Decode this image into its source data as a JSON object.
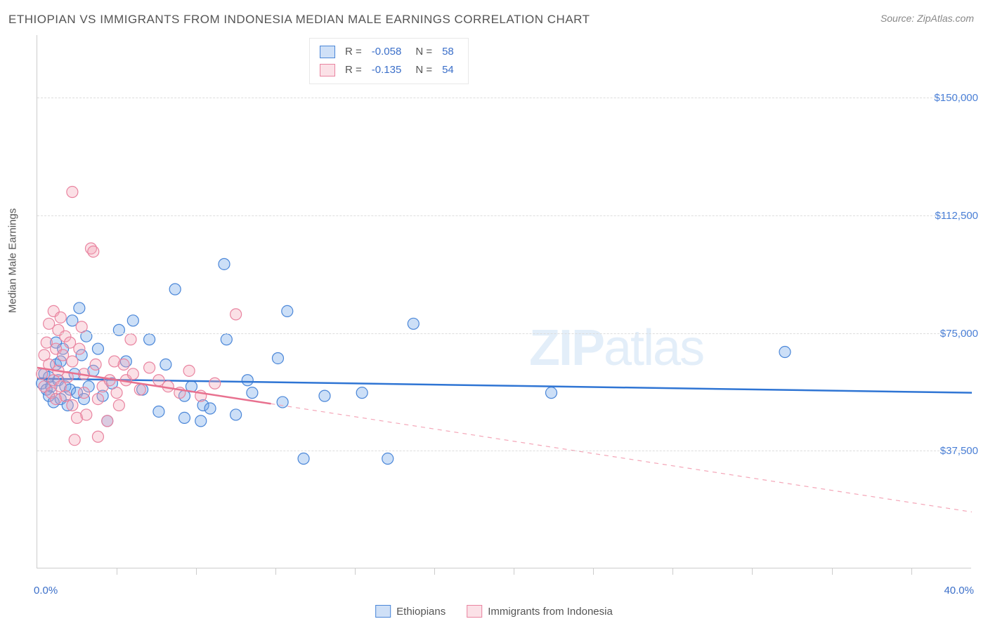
{
  "title": "ETHIOPIAN VS IMMIGRANTS FROM INDONESIA MEDIAN MALE EARNINGS CORRELATION CHART",
  "source": "Source: ZipAtlas.com",
  "y_axis_title": "Median Male Earnings",
  "watermark_bold": "ZIP",
  "watermark_rest": "atlas",
  "chart": {
    "type": "scatter",
    "background_color": "#ffffff",
    "grid_color": "#dddddd",
    "axis_color": "#cccccc",
    "text_color": "#555555",
    "value_color": "#3b6fc9",
    "xlim": [
      0,
      40
    ],
    "ylim": [
      0,
      170000
    ],
    "x_min_label": "0.0%",
    "x_max_label": "40.0%",
    "x_tick_positions": [
      3.4,
      6.8,
      10.2,
      13.6,
      17.0,
      20.4,
      23.8,
      27.2,
      30.6,
      34.0,
      37.4
    ],
    "y_ticks": [
      {
        "value": 37500,
        "label": "$37,500"
      },
      {
        "value": 75000,
        "label": "$75,000"
      },
      {
        "value": 112500,
        "label": "$112,500"
      },
      {
        "value": 150000,
        "label": "$150,000"
      }
    ],
    "marker_radius": 8,
    "marker_stroke_width": 1.2,
    "marker_fill_opacity": 0.35,
    "series": [
      {
        "name": "Ethiopians",
        "color": "#6ea3e8",
        "stroke": "#4a86d8",
        "r": -0.058,
        "n": 58,
        "regression": {
          "x1": 0,
          "y1": 60500,
          "x2": 40,
          "y2": 56000,
          "solid_until_x": 40,
          "stroke_width": 2.5,
          "stroke_color": "#2f75d4"
        },
        "points": [
          [
            0.2,
            59000
          ],
          [
            0.3,
            62000
          ],
          [
            0.4,
            57000
          ],
          [
            0.5,
            61000
          ],
          [
            0.5,
            55000
          ],
          [
            0.6,
            58000
          ],
          [
            0.7,
            53000
          ],
          [
            0.8,
            65000
          ],
          [
            0.8,
            72000
          ],
          [
            0.9,
            60000
          ],
          [
            1.0,
            66000
          ],
          [
            1.0,
            54000
          ],
          [
            1.1,
            70000
          ],
          [
            1.2,
            58000
          ],
          [
            1.3,
            52000
          ],
          [
            1.4,
            57000
          ],
          [
            1.5,
            79000
          ],
          [
            1.6,
            62000
          ],
          [
            1.7,
            56000
          ],
          [
            1.8,
            83000
          ],
          [
            1.9,
            68000
          ],
          [
            2.0,
            54000
          ],
          [
            2.1,
            74000
          ],
          [
            2.2,
            58000
          ],
          [
            2.4,
            63000
          ],
          [
            2.6,
            70000
          ],
          [
            2.8,
            55000
          ],
          [
            3.0,
            47000
          ],
          [
            3.2,
            59000
          ],
          [
            3.5,
            76000
          ],
          [
            3.8,
            66000
          ],
          [
            4.1,
            79000
          ],
          [
            4.5,
            57000
          ],
          [
            4.8,
            73000
          ],
          [
            5.2,
            50000
          ],
          [
            5.5,
            65000
          ],
          [
            5.9,
            89000
          ],
          [
            6.3,
            48000
          ],
          [
            6.3,
            55000
          ],
          [
            6.6,
            58000
          ],
          [
            7.0,
            47000
          ],
          [
            7.1,
            52000
          ],
          [
            7.4,
            51000
          ],
          [
            8.0,
            97000
          ],
          [
            8.1,
            73000
          ],
          [
            8.5,
            49000
          ],
          [
            9.0,
            60000
          ],
          [
            9.2,
            56000
          ],
          [
            10.3,
            67000
          ],
          [
            10.5,
            53000
          ],
          [
            10.7,
            82000
          ],
          [
            11.4,
            35000
          ],
          [
            12.3,
            55000
          ],
          [
            13.9,
            56000
          ],
          [
            15.0,
            35000
          ],
          [
            16.1,
            78000
          ],
          [
            22.0,
            56000
          ],
          [
            32.0,
            69000
          ]
        ]
      },
      {
        "name": "Immigrants from Indonesia",
        "color": "#f4a6b8",
        "stroke": "#e984a0",
        "r": -0.135,
        "n": 54,
        "regression": {
          "x1": 0,
          "y1": 64000,
          "x2": 40,
          "y2": 18000,
          "solid_until_x": 10,
          "stroke_width": 2.5,
          "stroke_color": "#e8718f",
          "dash_color": "#f4a6b8"
        },
        "points": [
          [
            0.2,
            62000
          ],
          [
            0.3,
            68000
          ],
          [
            0.3,
            58000
          ],
          [
            0.4,
            72000
          ],
          [
            0.5,
            65000
          ],
          [
            0.5,
            78000
          ],
          [
            0.6,
            56000
          ],
          [
            0.7,
            82000
          ],
          [
            0.7,
            60000
          ],
          [
            0.8,
            54000
          ],
          [
            0.8,
            70000
          ],
          [
            0.9,
            76000
          ],
          [
            0.9,
            63000
          ],
          [
            1.0,
            80000
          ],
          [
            1.0,
            58000
          ],
          [
            1.1,
            68000
          ],
          [
            1.2,
            74000
          ],
          [
            1.2,
            55000
          ],
          [
            1.3,
            61000
          ],
          [
            1.4,
            72000
          ],
          [
            1.5,
            52000
          ],
          [
            1.5,
            66000
          ],
          [
            1.5,
            120000
          ],
          [
            1.6,
            41000
          ],
          [
            1.7,
            48000
          ],
          [
            1.8,
            70000
          ],
          [
            1.9,
            77000
          ],
          [
            2.0,
            56000
          ],
          [
            2.0,
            62000
          ],
          [
            2.1,
            49000
          ],
          [
            2.3,
            102000
          ],
          [
            2.4,
            101000
          ],
          [
            2.5,
            65000
          ],
          [
            2.6,
            54000
          ],
          [
            2.6,
            42000
          ],
          [
            2.8,
            58000
          ],
          [
            3.0,
            47000
          ],
          [
            3.1,
            60000
          ],
          [
            3.3,
            66000
          ],
          [
            3.4,
            56000
          ],
          [
            3.5,
            52000
          ],
          [
            3.7,
            65000
          ],
          [
            3.8,
            60000
          ],
          [
            4.0,
            73000
          ],
          [
            4.1,
            62000
          ],
          [
            4.4,
            57000
          ],
          [
            4.8,
            64000
          ],
          [
            5.2,
            60000
          ],
          [
            5.6,
            58000
          ],
          [
            6.1,
            56000
          ],
          [
            6.5,
            63000
          ],
          [
            7.0,
            55000
          ],
          [
            7.6,
            59000
          ],
          [
            8.5,
            81000
          ]
        ]
      }
    ]
  },
  "legend_labels": {
    "r": "R =",
    "n": "N ="
  }
}
